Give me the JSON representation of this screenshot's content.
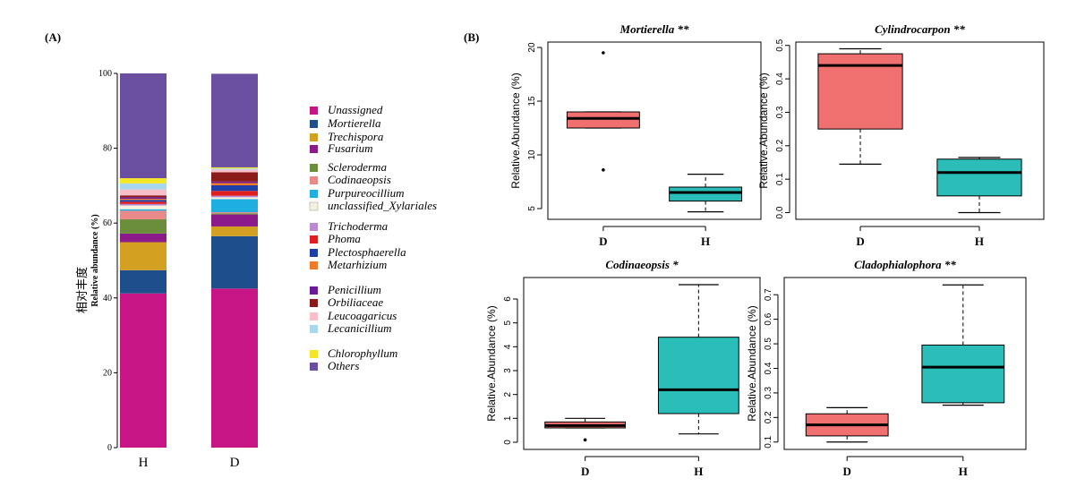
{
  "panel_a_label": "(A)",
  "panel_b_label": "(B)",
  "chart_data": [
    {
      "type": "bar",
      "stacked": true,
      "ylabel": "Relative abundance (%)",
      "ylabel_cn": "相对丰度",
      "yticks": [
        "0",
        "20",
        "40",
        "60",
        "80",
        "100"
      ],
      "ylim": [
        0,
        100
      ],
      "categories": [
        "H",
        "D"
      ],
      "series": [
        {
          "name": "Unassigned",
          "color": "#C71585",
          "values": [
            41.2,
            42.5
          ]
        },
        {
          "name": "Mortierella",
          "color": "#1F4E8C",
          "values": [
            6.2,
            14.0
          ]
        },
        {
          "name": "Trechispora",
          "color": "#D4A021",
          "values": [
            7.5,
            2.6
          ]
        },
        {
          "name": "Fusarium",
          "color": "#8B1A8B",
          "values": [
            2.3,
            3.2
          ]
        },
        {
          "name": "Scleroderma",
          "color": "#6B8E3D",
          "values": [
            3.8,
            0.3
          ]
        },
        {
          "name": "Codinaeopsis",
          "color": "#E98A8A",
          "values": [
            2.3,
            0.3
          ]
        },
        {
          "name": "Purpureocillium",
          "color": "#1EAEE0",
          "values": [
            0.4,
            3.5
          ]
        },
        {
          "name": "unclassified_Xylariales",
          "color": "#F5F1DE",
          "values": [
            1.0,
            0.5
          ]
        },
        {
          "name": "Trichoderma",
          "color": "#B98AD0",
          "values": [
            0.4,
            0.4
          ]
        },
        {
          "name": "Phoma",
          "color": "#E02020",
          "values": [
            0.6,
            1.3
          ]
        },
        {
          "name": "Plectosphaerella",
          "color": "#1E3FA8",
          "values": [
            0.5,
            1.5
          ]
        },
        {
          "name": "Metarhizium",
          "color": "#F07A28",
          "values": [
            0.3,
            0.6
          ]
        },
        {
          "name": "Penicillium",
          "color": "#6A1B9A",
          "values": [
            0.4,
            0.4
          ]
        },
        {
          "name": "Orbiliaceae",
          "color": "#8B1A1A",
          "values": [
            0.5,
            2.5
          ]
        },
        {
          "name": "Leucoagaricus",
          "color": "#F8BFC8",
          "values": [
            1.6,
            0.7
          ]
        },
        {
          "name": "Lecanicillium",
          "color": "#A8D8F0",
          "values": [
            1.6,
            0.3
          ]
        },
        {
          "name": "Chlorophyllum",
          "color": "#F5E62A",
          "values": [
            1.4,
            0.3
          ]
        },
        {
          "name": "Others",
          "color": "#6A4FA0",
          "values": [
            28.0,
            25.0
          ]
        }
      ]
    },
    {
      "type": "box",
      "title": "Mortierella **",
      "ylabel": "Relative.Abundance (%)",
      "ylim": [
        4,
        20.5
      ],
      "yticks": [
        5,
        10,
        15,
        20
      ],
      "categories": [
        "D",
        "H"
      ],
      "boxes": [
        {
          "group": "D",
          "color": "#F07070",
          "min": 12.5,
          "q1": 12.5,
          "median": 13.4,
          "q3": 14.0,
          "max": 14.0,
          "outliers": [
            19.5,
            8.6
          ]
        },
        {
          "group": "H",
          "color": "#2BBDB8",
          "min": 4.7,
          "q1": 5.7,
          "median": 6.5,
          "q3": 7.0,
          "max": 8.2,
          "outliers": []
        }
      ]
    },
    {
      "type": "box",
      "title": "Cylindrocarpon **",
      "ylabel": "Relative.Abundance (%)",
      "ylim": [
        -0.02,
        0.51
      ],
      "yticks": [
        0.0,
        0.1,
        0.2,
        0.3,
        0.4,
        0.5
      ],
      "categories": [
        "D",
        "H"
      ],
      "boxes": [
        {
          "group": "D",
          "color": "#F07070",
          "min": 0.145,
          "q1": 0.25,
          "median": 0.44,
          "q3": 0.475,
          "max": 0.49,
          "outliers": []
        },
        {
          "group": "H",
          "color": "#2BBDB8",
          "min": 0.0,
          "q1": 0.05,
          "median": 0.12,
          "q3": 0.16,
          "max": 0.165,
          "outliers": []
        }
      ]
    },
    {
      "type": "box",
      "title": "Codinaeopsis *",
      "ylabel": "Relative.Abundance (%)",
      "ylim": [
        -0.3,
        6.9
      ],
      "yticks": [
        0,
        1,
        2,
        3,
        4,
        5,
        6
      ],
      "categories": [
        "D",
        "H"
      ],
      "boxes": [
        {
          "group": "D",
          "color": "#F07070",
          "min": 0.6,
          "q1": 0.6,
          "median": 0.7,
          "q3": 0.85,
          "max": 1.0,
          "outliers": [
            0.1
          ]
        },
        {
          "group": "H",
          "color": "#2BBDB8",
          "min": 0.35,
          "q1": 1.2,
          "median": 2.2,
          "q3": 4.4,
          "max": 6.6,
          "outliers": []
        }
      ]
    },
    {
      "type": "box",
      "title": "Cladophialophora **",
      "ylabel": "Relative.Abundance (%)",
      "ylim": [
        0.07,
        0.77
      ],
      "yticks": [
        0.1,
        0.2,
        0.3,
        0.4,
        0.5,
        0.6,
        0.7
      ],
      "categories": [
        "D",
        "H"
      ],
      "boxes": [
        {
          "group": "D",
          "color": "#F07070",
          "min": 0.1,
          "q1": 0.125,
          "median": 0.17,
          "q3": 0.215,
          "max": 0.24,
          "outliers": []
        },
        {
          "group": "H",
          "color": "#2BBDB8",
          "min": 0.25,
          "q1": 0.26,
          "median": 0.405,
          "q3": 0.495,
          "max": 0.74,
          "outliers": []
        }
      ]
    }
  ]
}
